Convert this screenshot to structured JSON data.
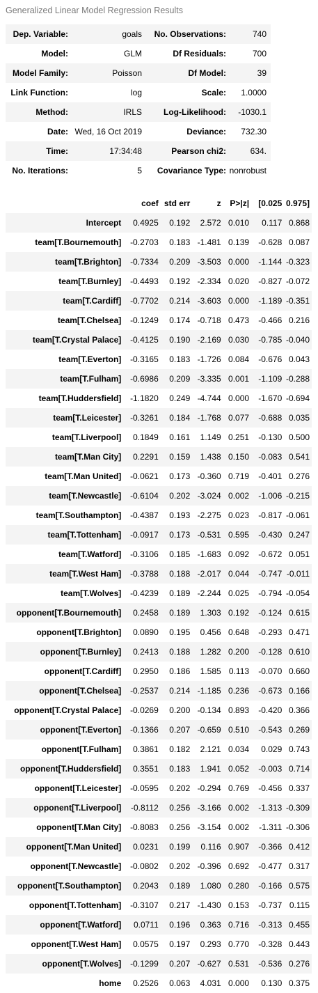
{
  "caption": "Generalized Linear Model Regression Results",
  "summary": [
    [
      "Dep. Variable:",
      "goals",
      "No. Observations:",
      "740"
    ],
    [
      "Model:",
      "GLM",
      "Df Residuals:",
      "700"
    ],
    [
      "Model Family:",
      "Poisson",
      "Df Model:",
      "39"
    ],
    [
      "Link Function:",
      "log",
      "Scale:",
      "1.0000"
    ],
    [
      "Method:",
      "IRLS",
      "Log-Likelihood:",
      "-1030.1"
    ],
    [
      "Date:",
      "Wed, 16 Oct 2019",
      "Deviance:",
      "732.30"
    ],
    [
      "Time:",
      "17:34:48",
      "Pearson chi2:",
      "634."
    ],
    [
      "No. Iterations:",
      "5",
      "Covariance Type:",
      "nonrobust"
    ]
  ],
  "coef_headers": [
    "",
    "coef",
    "std err",
    "z",
    "P>|z|",
    "[0.025",
    "0.975]"
  ],
  "coef_rows": [
    [
      "Intercept",
      "0.4925",
      "0.192",
      "2.572",
      "0.010",
      "0.117",
      "0.868"
    ],
    [
      "team[T.Bournemouth]",
      "-0.2703",
      "0.183",
      "-1.481",
      "0.139",
      "-0.628",
      "0.087"
    ],
    [
      "team[T.Brighton]",
      "-0.7334",
      "0.209",
      "-3.503",
      "0.000",
      "-1.144",
      "-0.323"
    ],
    [
      "team[T.Burnley]",
      "-0.4493",
      "0.192",
      "-2.334",
      "0.020",
      "-0.827",
      "-0.072"
    ],
    [
      "team[T.Cardiff]",
      "-0.7702",
      "0.214",
      "-3.603",
      "0.000",
      "-1.189",
      "-0.351"
    ],
    [
      "team[T.Chelsea]",
      "-0.1249",
      "0.174",
      "-0.718",
      "0.473",
      "-0.466",
      "0.216"
    ],
    [
      "team[T.Crystal Palace]",
      "-0.4125",
      "0.190",
      "-2.169",
      "0.030",
      "-0.785",
      "-0.040"
    ],
    [
      "team[T.Everton]",
      "-0.3165",
      "0.183",
      "-1.726",
      "0.084",
      "-0.676",
      "0.043"
    ],
    [
      "team[T.Fulham]",
      "-0.6986",
      "0.209",
      "-3.335",
      "0.001",
      "-1.109",
      "-0.288"
    ],
    [
      "team[T.Huddersfield]",
      "-1.1820",
      "0.249",
      "-4.744",
      "0.000",
      "-1.670",
      "-0.694"
    ],
    [
      "team[T.Leicester]",
      "-0.3261",
      "0.184",
      "-1.768",
      "0.077",
      "-0.688",
      "0.035"
    ],
    [
      "team[T.Liverpool]",
      "0.1849",
      "0.161",
      "1.149",
      "0.251",
      "-0.130",
      "0.500"
    ],
    [
      "team[T.Man City]",
      "0.2291",
      "0.159",
      "1.438",
      "0.150",
      "-0.083",
      "0.541"
    ],
    [
      "team[T.Man United]",
      "-0.0621",
      "0.173",
      "-0.360",
      "0.719",
      "-0.401",
      "0.276"
    ],
    [
      "team[T.Newcastle]",
      "-0.6104",
      "0.202",
      "-3.024",
      "0.002",
      "-1.006",
      "-0.215"
    ],
    [
      "team[T.Southampton]",
      "-0.4387",
      "0.193",
      "-2.275",
      "0.023",
      "-0.817",
      "-0.061"
    ],
    [
      "team[T.Tottenham]",
      "-0.0917",
      "0.173",
      "-0.531",
      "0.595",
      "-0.430",
      "0.247"
    ],
    [
      "team[T.Watford]",
      "-0.3106",
      "0.185",
      "-1.683",
      "0.092",
      "-0.672",
      "0.051"
    ],
    [
      "team[T.West Ham]",
      "-0.3788",
      "0.188",
      "-2.017",
      "0.044",
      "-0.747",
      "-0.011"
    ],
    [
      "team[T.Wolves]",
      "-0.4239",
      "0.189",
      "-2.244",
      "0.025",
      "-0.794",
      "-0.054"
    ],
    [
      "opponent[T.Bournemouth]",
      "0.2458",
      "0.189",
      "1.303",
      "0.192",
      "-0.124",
      "0.615"
    ],
    [
      "opponent[T.Brighton]",
      "0.0890",
      "0.195",
      "0.456",
      "0.648",
      "-0.293",
      "0.471"
    ],
    [
      "opponent[T.Burnley]",
      "0.2413",
      "0.188",
      "1.282",
      "0.200",
      "-0.128",
      "0.610"
    ],
    [
      "opponent[T.Cardiff]",
      "0.2950",
      "0.186",
      "1.585",
      "0.113",
      "-0.070",
      "0.660"
    ],
    [
      "opponent[T.Chelsea]",
      "-0.2537",
      "0.214",
      "-1.185",
      "0.236",
      "-0.673",
      "0.166"
    ],
    [
      "opponent[T.Crystal Palace]",
      "-0.0269",
      "0.200",
      "-0.134",
      "0.893",
      "-0.420",
      "0.366"
    ],
    [
      "opponent[T.Everton]",
      "-0.1366",
      "0.207",
      "-0.659",
      "0.510",
      "-0.543",
      "0.269"
    ],
    [
      "opponent[T.Fulham]",
      "0.3861",
      "0.182",
      "2.121",
      "0.034",
      "0.029",
      "0.743"
    ],
    [
      "opponent[T.Huddersfield]",
      "0.3551",
      "0.183",
      "1.941",
      "0.052",
      "-0.003",
      "0.714"
    ],
    [
      "opponent[T.Leicester]",
      "-0.0595",
      "0.202",
      "-0.294",
      "0.769",
      "-0.456",
      "0.337"
    ],
    [
      "opponent[T.Liverpool]",
      "-0.8112",
      "0.256",
      "-3.166",
      "0.002",
      "-1.313",
      "-0.309"
    ],
    [
      "opponent[T.Man City]",
      "-0.8083",
      "0.256",
      "-3.154",
      "0.002",
      "-1.311",
      "-0.306"
    ],
    [
      "opponent[T.Man United]",
      "0.0231",
      "0.199",
      "0.116",
      "0.907",
      "-0.366",
      "0.412"
    ],
    [
      "opponent[T.Newcastle]",
      "-0.0802",
      "0.202",
      "-0.396",
      "0.692",
      "-0.477",
      "0.317"
    ],
    [
      "opponent[T.Southampton]",
      "0.2043",
      "0.189",
      "1.080",
      "0.280",
      "-0.166",
      "0.575"
    ],
    [
      "opponent[T.Tottenham]",
      "-0.3107",
      "0.217",
      "-1.430",
      "0.153",
      "-0.737",
      "0.115"
    ],
    [
      "opponent[T.Watford]",
      "0.0711",
      "0.196",
      "0.363",
      "0.716",
      "-0.313",
      "0.455"
    ],
    [
      "opponent[T.West Ham]",
      "0.0575",
      "0.197",
      "0.293",
      "0.770",
      "-0.328",
      "0.443"
    ],
    [
      "opponent[T.Wolves]",
      "-0.1299",
      "0.207",
      "-0.627",
      "0.531",
      "-0.536",
      "0.276"
    ],
    [
      "home",
      "0.2526",
      "0.063",
      "4.031",
      "0.000",
      "0.130",
      "0.375"
    ]
  ]
}
